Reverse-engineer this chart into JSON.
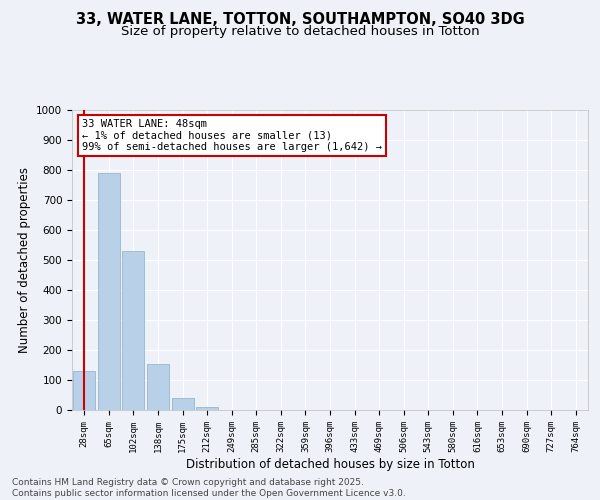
{
  "title_line1": "33, WATER LANE, TOTTON, SOUTHAMPTON, SO40 3DG",
  "title_line2": "Size of property relative to detached houses in Totton",
  "xlabel": "Distribution of detached houses by size in Totton",
  "ylabel": "Number of detached properties",
  "categories": [
    "28sqm",
    "65sqm",
    "102sqm",
    "138sqm",
    "175sqm",
    "212sqm",
    "249sqm",
    "285sqm",
    "322sqm",
    "359sqm",
    "396sqm",
    "433sqm",
    "469sqm",
    "506sqm",
    "543sqm",
    "580sqm",
    "616sqm",
    "653sqm",
    "690sqm",
    "727sqm",
    "764sqm"
  ],
  "values": [
    130,
    790,
    530,
    155,
    40,
    10,
    0,
    0,
    0,
    0,
    0,
    0,
    0,
    0,
    0,
    0,
    0,
    0,
    0,
    0,
    0
  ],
  "bar_color": "#b8d0e8",
  "bar_edge_color": "#8aafc8",
  "ylim": [
    0,
    1000
  ],
  "yticks": [
    0,
    100,
    200,
    300,
    400,
    500,
    600,
    700,
    800,
    900,
    1000
  ],
  "red_line_x": 0,
  "annotation_text_line1": "33 WATER LANE: 48sqm",
  "annotation_text_line2": "← 1% of detached houses are smaller (13)",
  "annotation_text_line3": "99% of semi-detached houses are larger (1,642) →",
  "annotation_box_color": "#ffffff",
  "annotation_box_edge_color": "#cc0000",
  "red_line_color": "#cc0000",
  "footer_line1": "Contains HM Land Registry data © Crown copyright and database right 2025.",
  "footer_line2": "Contains public sector information licensed under the Open Government Licence v3.0.",
  "background_color": "#eef2f8",
  "grid_color": "#ffffff",
  "title_fontsize": 10.5,
  "subtitle_fontsize": 9.5,
  "axis_label_fontsize": 8.5,
  "tick_fontsize": 7.5,
  "annotation_fontsize": 7.5,
  "footer_fontsize": 6.5
}
